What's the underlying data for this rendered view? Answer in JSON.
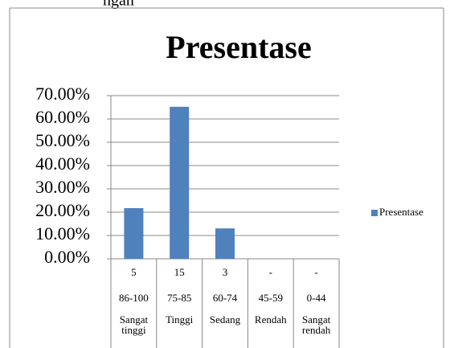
{
  "fragment": "ngan",
  "chart_data": {
    "type": "bar",
    "title": "Presentase",
    "categories": [
      "Sangat tinggi",
      "Tinggi",
      "Sedang",
      "Rendah",
      "Sangat rendah"
    ],
    "category_ranges": [
      "86-100",
      "75-85",
      "60-74",
      "45-59",
      "0-44"
    ],
    "category_counts": [
      "5",
      "15",
      "3",
      "-",
      "-"
    ],
    "series": [
      {
        "name": "Presentase",
        "color": "#4f81bd",
        "values": [
          21.74,
          65.22,
          13.04,
          null,
          null
        ]
      }
    ],
    "ylim": [
      0,
      70
    ],
    "yticks": [
      {
        "value": 0,
        "label": "0.00%"
      },
      {
        "value": 10,
        "label": "10.00%"
      },
      {
        "value": 20,
        "label": "20.00%"
      },
      {
        "value": 30,
        "label": "30.00%"
      },
      {
        "value": 40,
        "label": "40.00%"
      },
      {
        "value": 50,
        "label": "50.00%"
      },
      {
        "value": 60,
        "label": "60.00%"
      },
      {
        "value": 70,
        "label": "70.00%"
      }
    ],
    "grid": true,
    "legend": "right"
  }
}
